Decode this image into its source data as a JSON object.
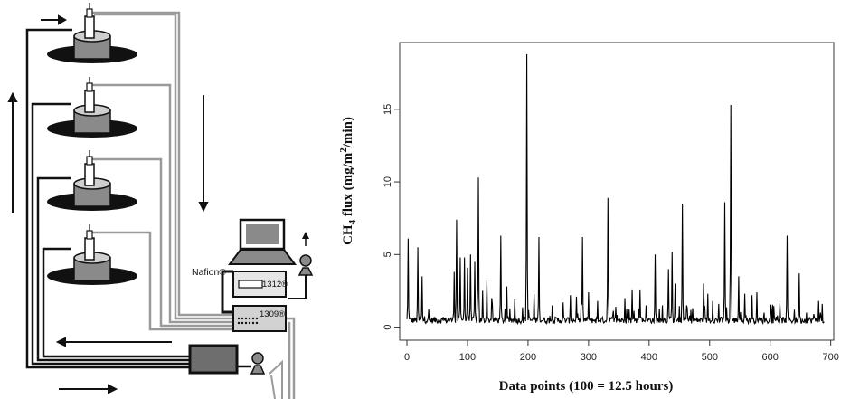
{
  "diagram": {
    "nafion_label": "Nafion®",
    "analyzer_top_label": "1312®",
    "analyzer_bottom_label": "1309®",
    "icons": [
      "laptop-icon",
      "pump-icon",
      "chamber-icon",
      "flow-arrow-icon"
    ]
  },
  "chart_data": {
    "type": "line",
    "xlabel": "Data points (100 = 12.5 hours)",
    "ylabel_main": "CH",
    "ylabel_sub": "4",
    "ylabel_rest": " flux (mg/m",
    "ylabel_sup": "2",
    "ylabel_end": "/min)",
    "xlim": [
      -12,
      705
    ],
    "ylim": [
      -0.9,
      19.6
    ],
    "xticks": [
      0,
      100,
      200,
      300,
      400,
      500,
      600,
      700
    ],
    "xtick_labels": [
      "0",
      "100",
      "200",
      "300",
      "400",
      "500",
      "600",
      "700"
    ],
    "yticks": [
      0,
      5,
      10,
      15
    ],
    "ytick_labels": [
      "0",
      "5",
      "10",
      "15"
    ],
    "grid": false,
    "line_color": "#000000",
    "peaks": [
      [
        2,
        6.1
      ],
      [
        18,
        5.5
      ],
      [
        25,
        3.5
      ],
      [
        78,
        3.8
      ],
      [
        82,
        7.4
      ],
      [
        88,
        4.8
      ],
      [
        95,
        4.8
      ],
      [
        100,
        4.1
      ],
      [
        105,
        5.0
      ],
      [
        112,
        4.5
      ],
      [
        118,
        10.3
      ],
      [
        125,
        2.5
      ],
      [
        132,
        3.2
      ],
      [
        140,
        2.0
      ],
      [
        155,
        6.3
      ],
      [
        165,
        2.8
      ],
      [
        178,
        1.9
      ],
      [
        198,
        18.8
      ],
      [
        210,
        2.3
      ],
      [
        218,
        6.2
      ],
      [
        258,
        1.7
      ],
      [
        270,
        2.2
      ],
      [
        280,
        2.1
      ],
      [
        290,
        6.2
      ],
      [
        300,
        2.4
      ],
      [
        315,
        1.8
      ],
      [
        332,
        8.9
      ],
      [
        345,
        1.4
      ],
      [
        360,
        2.0
      ],
      [
        372,
        2.6
      ],
      [
        385,
        2.6
      ],
      [
        395,
        1.5
      ],
      [
        410,
        5.0
      ],
      [
        422,
        1.5
      ],
      [
        432,
        4.0
      ],
      [
        438,
        5.2
      ],
      [
        443,
        3.0
      ],
      [
        455,
        8.5
      ],
      [
        462,
        1.5
      ],
      [
        472,
        1.3
      ],
      [
        490,
        3.0
      ],
      [
        497,
        2.3
      ],
      [
        505,
        1.8
      ],
      [
        515,
        1.6
      ],
      [
        525,
        8.6
      ],
      [
        535,
        15.3
      ],
      [
        548,
        3.5
      ],
      [
        558,
        2.3
      ],
      [
        570,
        2.2
      ],
      [
        578,
        2.4
      ],
      [
        590,
        1.0
      ],
      [
        612,
        0.8
      ],
      [
        628,
        6.3
      ],
      [
        640,
        1.2
      ],
      [
        648,
        3.7
      ],
      [
        660,
        1.0
      ],
      [
        672,
        0.9
      ],
      [
        680,
        1.8
      ],
      [
        686,
        1.6
      ]
    ]
  }
}
